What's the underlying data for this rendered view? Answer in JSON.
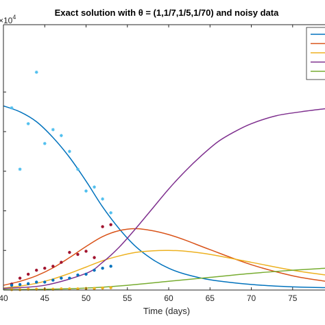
{
  "chart_data": {
    "type": "line",
    "title": "Exact solution with θ = (1,1/7,1/5,1/70) and noisy data",
    "xlabel": "Time (days)",
    "ylabel": "",
    "y_multiplier": "×10",
    "y_multiplier_exp": "4",
    "xlim": [
      40,
      79
    ],
    "ylim": [
      0,
      6.7
    ],
    "x_ticks": [
      40,
      45,
      50,
      55,
      60,
      65,
      70,
      75
    ],
    "x_tick_labels": [
      "40",
      "45",
      "50",
      "55",
      "60",
      "65",
      "70",
      "75"
    ],
    "y_ticks": [
      1,
      2,
      3,
      4,
      5
    ],
    "grid": false,
    "legend_position": "top-right",
    "legend_entries": 5,
    "series": [
      {
        "color": "#0072BD",
        "x": [
          40,
          42,
          44,
          46,
          48,
          50,
          52,
          54,
          56,
          58,
          60,
          62,
          65,
          70,
          75,
          79
        ],
        "y": [
          4.65,
          4.5,
          4.25,
          3.85,
          3.35,
          2.75,
          2.1,
          1.55,
          1.1,
          0.78,
          0.55,
          0.4,
          0.26,
          0.14,
          0.08,
          0.06
        ]
      },
      {
        "color": "#D95319",
        "x": [
          40,
          42,
          44,
          46,
          48,
          50,
          52,
          54,
          56,
          58,
          60,
          62,
          65,
          70,
          75,
          79
        ],
        "y": [
          0.12,
          0.22,
          0.36,
          0.56,
          0.82,
          1.1,
          1.35,
          1.5,
          1.55,
          1.5,
          1.4,
          1.26,
          1.02,
          0.64,
          0.36,
          0.22
        ]
      },
      {
        "color": "#EDB120",
        "x": [
          40,
          42,
          44,
          46,
          48,
          50,
          52,
          54,
          56,
          58,
          60,
          62,
          65,
          70,
          75,
          79
        ],
        "y": [
          0.05,
          0.1,
          0.17,
          0.28,
          0.42,
          0.58,
          0.74,
          0.86,
          0.95,
          0.99,
          1.0,
          0.98,
          0.9,
          0.7,
          0.5,
          0.38
        ]
      },
      {
        "color": "#7E2F8E",
        "x": [
          40,
          45,
          50,
          52,
          54,
          56,
          58,
          60,
          62,
          64,
          66,
          68,
          70,
          73,
          76,
          79
        ],
        "y": [
          0.04,
          0.12,
          0.42,
          0.7,
          1.08,
          1.55,
          2.05,
          2.55,
          3.0,
          3.4,
          3.75,
          4.0,
          4.2,
          4.4,
          4.5,
          4.58
        ]
      },
      {
        "color": "#77AC30",
        "x": [
          40,
          45,
          50,
          55,
          60,
          65,
          70,
          75,
          79
        ],
        "y": [
          0.01,
          0.02,
          0.05,
          0.12,
          0.22,
          0.32,
          0.42,
          0.5,
          0.55
        ]
      }
    ],
    "scatter": [
      {
        "color": "#4DBEEE",
        "marker": "*",
        "x": [
          41,
          42,
          43,
          44,
          45,
          46,
          47,
          48,
          49,
          50,
          51,
          52,
          53
        ],
        "y": [
          4.6,
          3.05,
          4.2,
          5.5,
          3.7,
          4.05,
          3.9,
          3.5,
          3.05,
          2.5,
          2.6,
          2.3,
          1.95
        ]
      },
      {
        "color": "#A2142F",
        "marker": ".",
        "x": [
          41,
          42,
          43,
          44,
          45,
          46,
          47,
          48,
          49,
          50,
          51,
          52,
          53
        ],
        "y": [
          0.15,
          0.3,
          0.4,
          0.5,
          0.55,
          0.6,
          0.7,
          0.95,
          0.9,
          0.98,
          0.82,
          1.6,
          1.65
        ]
      },
      {
        "color": "#0072BD",
        "marker": ".",
        "x": [
          41,
          42,
          43,
          44,
          45,
          46,
          47,
          48,
          49,
          50,
          51,
          52,
          53
        ],
        "y": [
          0.12,
          0.14,
          0.16,
          0.2,
          0.2,
          0.25,
          0.3,
          0.3,
          0.38,
          0.4,
          0.5,
          0.55,
          0.6
        ]
      },
      {
        "color": "#EDB120",
        "marker": ".",
        "x": [
          41,
          42,
          43,
          44,
          45,
          46,
          47,
          48,
          49,
          50,
          51,
          52,
          53
        ],
        "y": [
          0.01,
          0.01,
          0.02,
          0.02,
          0.02,
          0.02,
          0.03,
          0.03,
          0.03,
          0.04,
          0.04,
          0.05,
          0.06
        ]
      }
    ]
  }
}
